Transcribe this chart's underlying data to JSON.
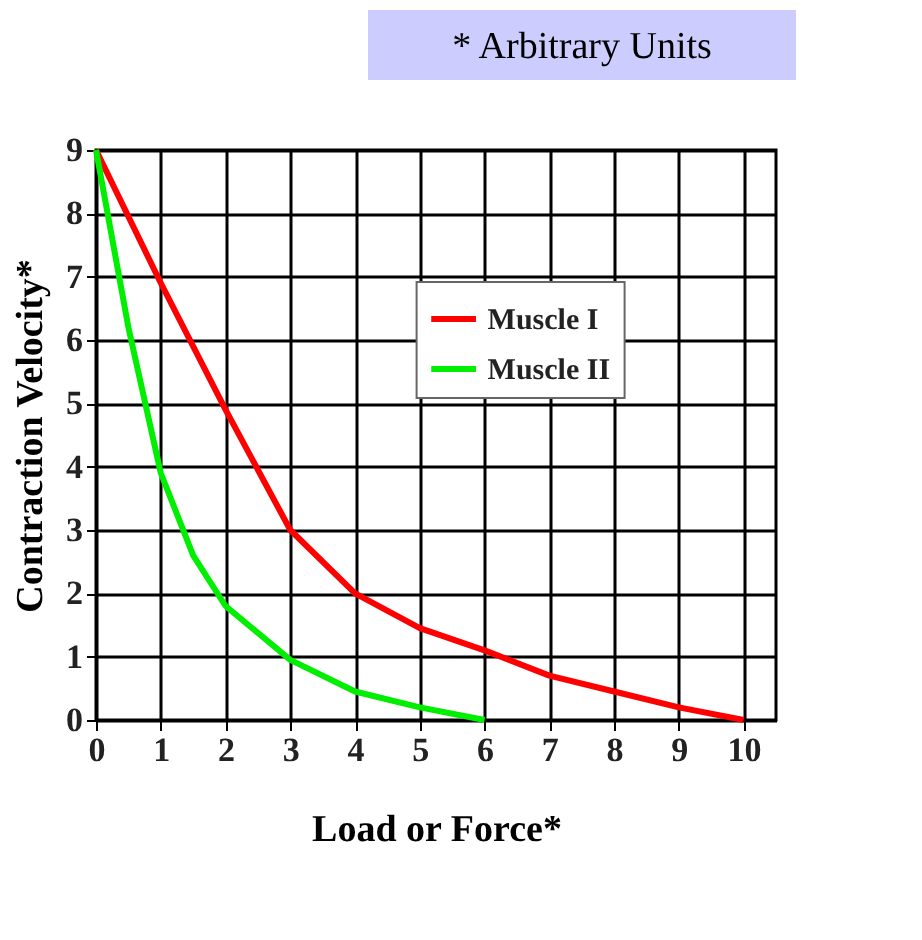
{
  "chart_data": {
    "type": "line",
    "xlabel": "Load or Force*",
    "ylabel": "Contraction Velocity*",
    "annotations": [
      "* Arbitrary Units"
    ],
    "xlim": [
      0,
      10.5
    ],
    "ylim": [
      0,
      9
    ],
    "xticks": [
      0,
      1,
      2,
      3,
      4,
      5,
      6,
      7,
      8,
      9,
      10
    ],
    "yticks": [
      0,
      1,
      2,
      3,
      4,
      5,
      6,
      7,
      8,
      9
    ],
    "grid": true,
    "legend": "top right",
    "series": [
      {
        "name": "Muscle I",
        "color": "#ff0000",
        "x": [
          0,
          1,
          2,
          3,
          4,
          5,
          6,
          7,
          8,
          9,
          10
        ],
        "values": [
          9,
          6.9,
          4.9,
          3,
          2,
          1.45,
          1.1,
          0.7,
          0.45,
          0.2,
          0
        ]
      },
      {
        "name": "Muscle II",
        "color": "#00ee00",
        "x": [
          0,
          0.5,
          1,
          1.5,
          2,
          3,
          4,
          5,
          6
        ],
        "values": [
          9,
          6.2,
          3.9,
          2.6,
          1.8,
          0.95,
          0.45,
          0.2,
          0
        ]
      }
    ]
  }
}
